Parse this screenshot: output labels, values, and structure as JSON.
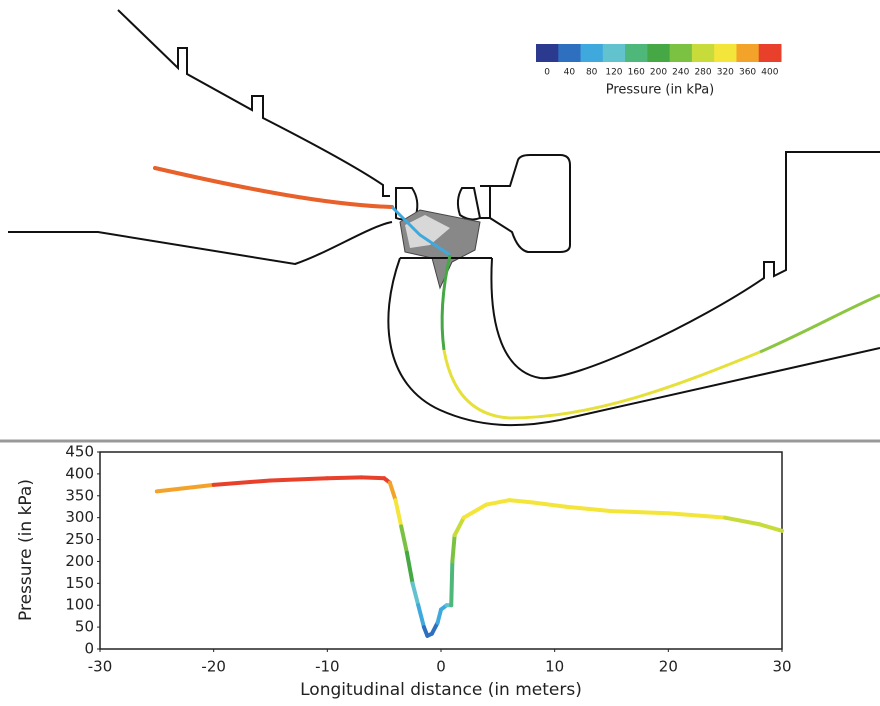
{
  "chart_data": {
    "type": "line",
    "x_label": "Longitudinal distance (in meters)",
    "y_label": "Pressure (in kPa)",
    "x": [
      -25,
      -20,
      -15,
      -10,
      -7,
      -5,
      -4.5,
      -4,
      -3.5,
      -3,
      -2.5,
      -2,
      -1.5,
      -1.2,
      -0.8,
      -0.3,
      0,
      0.5,
      0.9,
      1,
      1.2,
      2,
      4,
      6,
      8,
      11,
      15,
      20,
      25,
      28,
      30
    ],
    "values": [
      360,
      375,
      385,
      390,
      392,
      390,
      380,
      340,
      280,
      220,
      150,
      100,
      50,
      30,
      35,
      60,
      90,
      100,
      100,
      200,
      260,
      300,
      330,
      340,
      335,
      325,
      315,
      310,
      300,
      285,
      270
    ],
    "xlim": [
      -30,
      30
    ],
    "xticks": [
      -30,
      -20,
      -10,
      0,
      10,
      20,
      30
    ],
    "ylim": [
      0,
      450
    ],
    "yticks": [
      0,
      50,
      100,
      150,
      200,
      250,
      300,
      350,
      400,
      450
    ],
    "colorbar": {
      "label": "Pressure (in kPa)",
      "ticks": [
        0,
        40,
        80,
        120,
        160,
        200,
        240,
        280,
        320,
        360,
        400
      ],
      "colors": [
        "#2b3a8f",
        "#2f6fc0",
        "#3fa9dd",
        "#62c3cf",
        "#4db87a",
        "#45a845",
        "#7cc242",
        "#c7dc3b",
        "#f4e53a",
        "#f3a32a",
        "#e8402a"
      ]
    }
  }
}
